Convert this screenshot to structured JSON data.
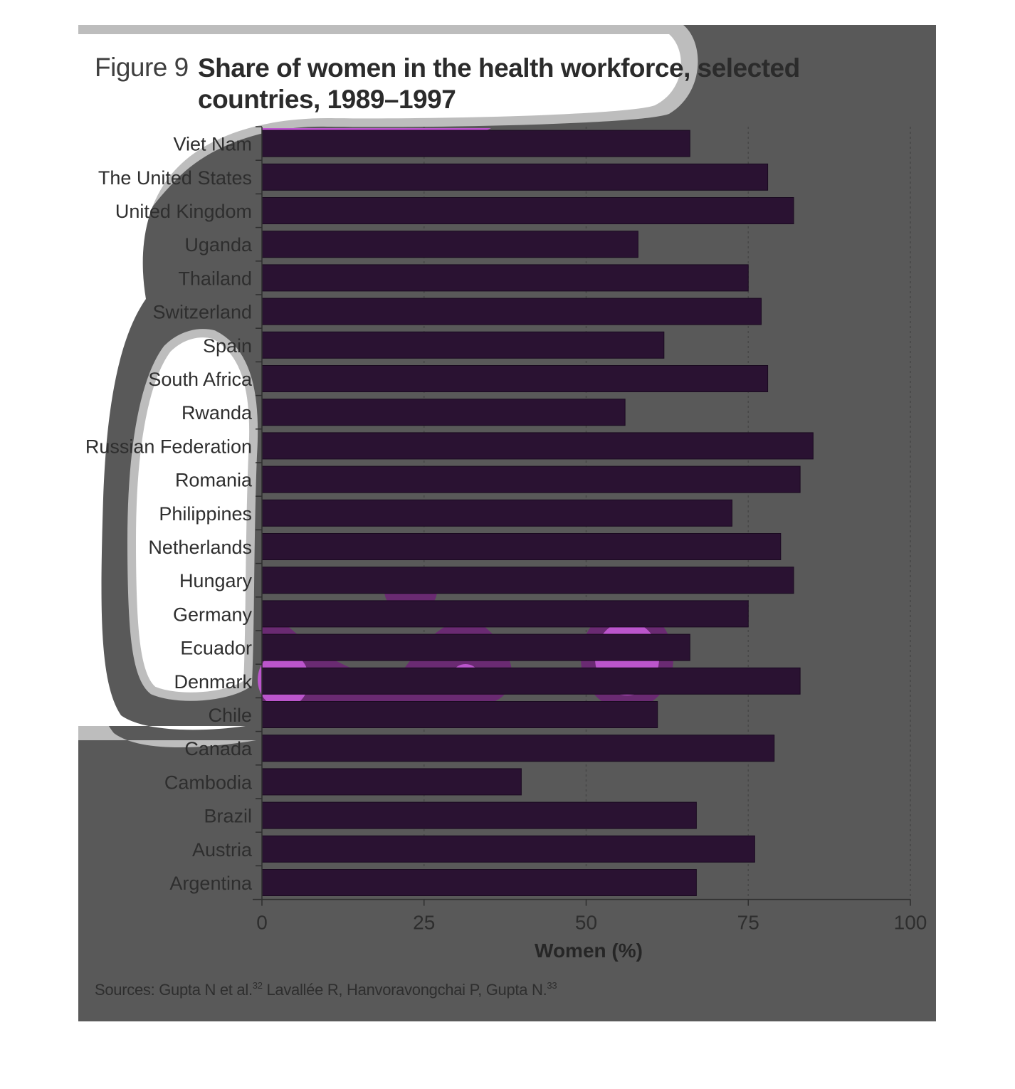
{
  "figure": {
    "prefix": "Figure 9",
    "title": "Share of women in the health workforce, selected countries, 1989–1997"
  },
  "sources": {
    "text": "Sources: Gupta N et al.",
    "ref1": "32",
    "text2": " Lavallée R, Hanvoravongchai P, Gupta N.",
    "ref2": "33"
  },
  "colors": {
    "background": "#595959",
    "bar": "#2a1232",
    "bar_stroke": "#1a0a20",
    "grid": "#474747",
    "axis": "#2e2e2e",
    "highlight": "#bb55cc",
    "highlight_dim": "#6a2a72"
  },
  "chart_data": {
    "type": "bar",
    "orientation": "horizontal",
    "title": "Share of women in the health workforce, selected countries, 1989–1997",
    "xlabel": "Women (%)",
    "ylabel": "",
    "xlim": [
      0,
      100
    ],
    "xticks": [
      0,
      25,
      50,
      75,
      100
    ],
    "grid": true,
    "categories": [
      "Viet Nam",
      "The United States",
      "United Kingdom",
      "Uganda",
      "Thailand",
      "Switzerland",
      "Spain",
      "South Africa",
      "Rwanda",
      "Russian Federation",
      "Romania",
      "Philippines",
      "Netherlands",
      "Hungary",
      "Germany",
      "Ecuador",
      "Denmark",
      "Chile",
      "Canada",
      "Cambodia",
      "Brazil",
      "Austria",
      "Argentina"
    ],
    "values": [
      66,
      78,
      82,
      58,
      75,
      77,
      62,
      78,
      56,
      85,
      83,
      72.5,
      80,
      82,
      75,
      66,
      83,
      61,
      79,
      40,
      67,
      76,
      67
    ]
  }
}
